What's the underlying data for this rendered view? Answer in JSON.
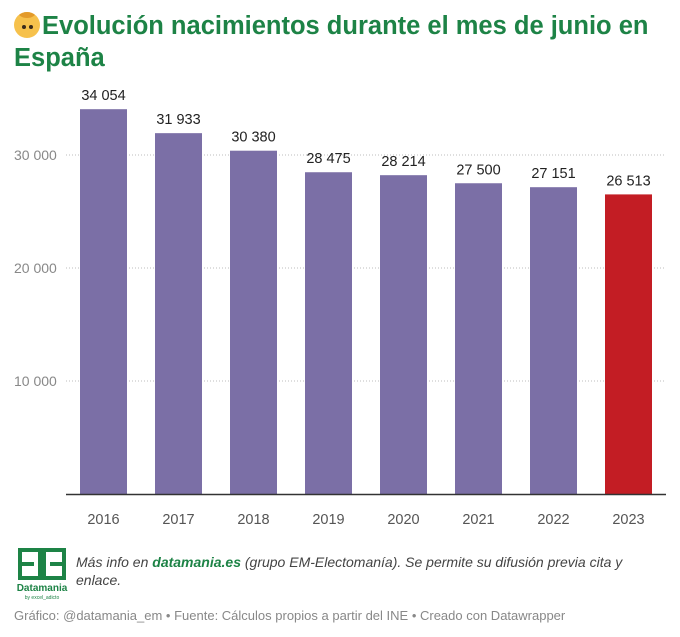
{
  "title": "Evolución nacimientos durante el mes de junio en España",
  "title_icon": "baby-face-icon",
  "chart_data": {
    "type": "bar",
    "categories": [
      "2016",
      "2017",
      "2018",
      "2019",
      "2020",
      "2021",
      "2022",
      "2023"
    ],
    "values": [
      34054,
      31933,
      30380,
      28475,
      28214,
      27500,
      27151,
      26513
    ],
    "value_labels": [
      "34 054",
      "31 933",
      "30 380",
      "28 475",
      "28 214",
      "27 500",
      "27 151",
      "26 513"
    ],
    "yticks": [
      {
        "value": 10000,
        "label": "10 000"
      },
      {
        "value": 20000,
        "label": "20 000"
      },
      {
        "value": 30000,
        "label": "30 000"
      }
    ],
    "ylim": [
      0,
      35500
    ],
    "grid": "horizontal-dotted",
    "colors": {
      "default": "#7b6fa6",
      "highlight": "#c31d24"
    },
    "highlight_index": 7
  },
  "note": {
    "prefix": "Más info en ",
    "link": "datamania.es",
    "suffix": " (grupo EM-Electomanía). Se permite su difusión previa cita y enlace."
  },
  "logo": {
    "name": "Datamania",
    "sub": "by excel_adicto"
  },
  "footer": "Gráfico: @datamania_em • Fuente: Cálculos propios a partir del INE • Creado con Datawrapper"
}
